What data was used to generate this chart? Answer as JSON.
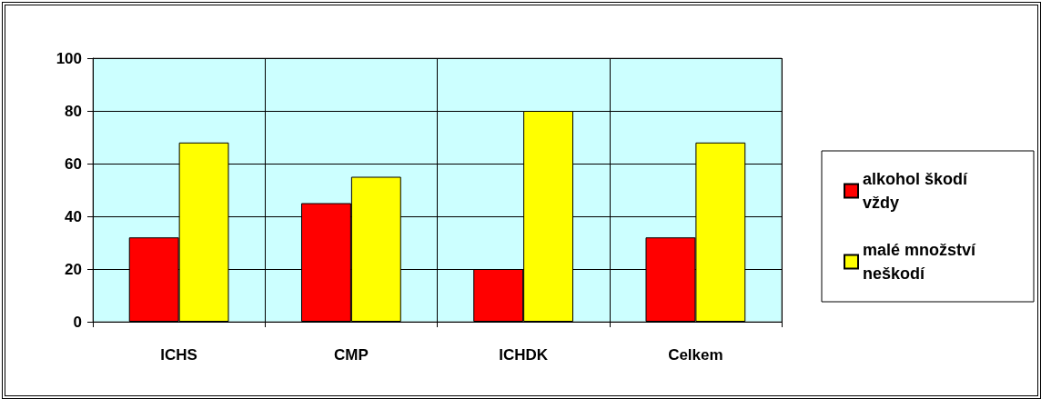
{
  "chart_data": {
    "type": "bar",
    "categories": [
      "ICHS",
      "CMP",
      "ICHDK",
      "Celkem"
    ],
    "series": [
      {
        "name": "alkohol škodí vždy",
        "color": "#ff0000",
        "values": [
          32,
          45,
          20,
          32
        ]
      },
      {
        "name": "malé množství neškodí",
        "color": "#ffff00",
        "values": [
          68,
          55,
          80,
          68
        ]
      }
    ],
    "ylim": [
      0,
      100
    ],
    "yticks": [
      0,
      20,
      40,
      60,
      80,
      100
    ],
    "grid": true,
    "legend": "right"
  }
}
